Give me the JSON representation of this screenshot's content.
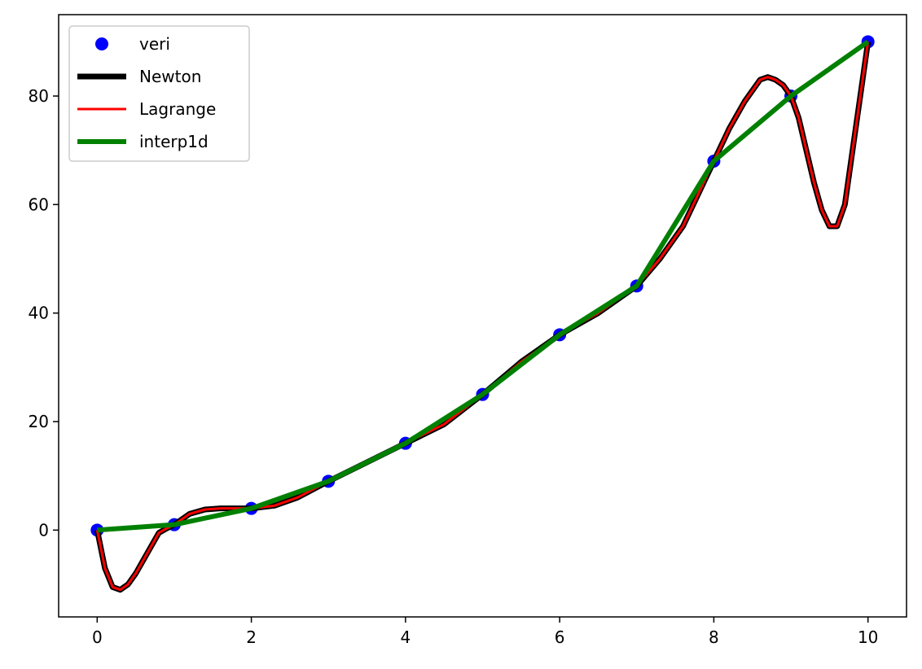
{
  "chart_data": {
    "type": "line",
    "title": "",
    "xlabel": "",
    "ylabel": "",
    "xlim": [
      -0.5,
      10.5
    ],
    "ylim": [
      -16,
      95
    ],
    "xticks": [
      0,
      2,
      4,
      6,
      8,
      10
    ],
    "yticks": [
      0,
      20,
      40,
      60,
      80
    ],
    "grid": false,
    "legend_position": "upper-left",
    "series": [
      {
        "name": "veri",
        "kind": "points",
        "color": "#0000ff",
        "x": [
          0,
          1,
          2,
          3,
          4,
          5,
          6,
          7,
          8,
          9,
          10
        ],
        "y": [
          0,
          1,
          4,
          9,
          16,
          25,
          36,
          45,
          68,
          80,
          90
        ]
      },
      {
        "name": "Newton",
        "kind": "line",
        "color": "#000000",
        "x": [
          0,
          0.1,
          0.2,
          0.3,
          0.4,
          0.5,
          0.6,
          0.7,
          0.8,
          0.9,
          1.0,
          1.2,
          1.4,
          1.6,
          1.8,
          2.0,
          2.3,
          2.6,
          3.0,
          3.5,
          4.0,
          4.5,
          5.0,
          5.5,
          6.0,
          6.5,
          7.0,
          7.3,
          7.6,
          8.0,
          8.2,
          8.4,
          8.5,
          8.6,
          8.7,
          8.8,
          8.9,
          9.0,
          9.1,
          9.2,
          9.3,
          9.4,
          9.5,
          9.6,
          9.7,
          9.8,
          9.9,
          10.0
        ],
        "y": [
          0,
          -7,
          -10.5,
          -11,
          -10,
          -8,
          -5.5,
          -3,
          -0.5,
          0.3,
          1,
          3,
          3.8,
          4,
          4,
          4,
          4.5,
          6,
          9,
          12.5,
          16,
          19.5,
          25,
          31,
          36,
          40,
          45,
          50,
          56,
          68,
          74,
          79,
          81,
          83,
          83.5,
          83,
          82,
          80,
          76,
          70,
          64,
          59,
          56,
          56,
          60,
          70,
          80,
          90
        ]
      },
      {
        "name": "Lagrange",
        "kind": "line",
        "color": "#ff0000",
        "x": [
          0,
          0.1,
          0.2,
          0.3,
          0.4,
          0.5,
          0.6,
          0.7,
          0.8,
          0.9,
          1.0,
          1.2,
          1.4,
          1.6,
          1.8,
          2.0,
          2.3,
          2.6,
          3.0,
          3.5,
          4.0,
          4.5,
          5.0,
          5.5,
          6.0,
          6.5,
          7.0,
          7.3,
          7.6,
          8.0,
          8.2,
          8.4,
          8.5,
          8.6,
          8.7,
          8.8,
          8.9,
          9.0,
          9.1,
          9.2,
          9.3,
          9.4,
          9.5,
          9.6,
          9.7,
          9.8,
          9.9,
          10.0
        ],
        "y": [
          0,
          -7,
          -10.5,
          -11,
          -10,
          -8,
          -5.5,
          -3,
          -0.5,
          0.3,
          1,
          3,
          3.8,
          4,
          4,
          4,
          4.5,
          6,
          9,
          12.5,
          16,
          19.5,
          25,
          31,
          36,
          40,
          45,
          50,
          56,
          68,
          74,
          79,
          81,
          83,
          83.5,
          83,
          82,
          80,
          76,
          70,
          64,
          59,
          56,
          56,
          60,
          70,
          80,
          90
        ]
      },
      {
        "name": "interp1d",
        "kind": "line",
        "color": "#008000",
        "x": [
          0,
          1,
          2,
          3,
          4,
          5,
          6,
          7,
          8,
          9,
          10
        ],
        "y": [
          0,
          1,
          4,
          9,
          16,
          25,
          36,
          45,
          68,
          80,
          90
        ]
      }
    ]
  }
}
